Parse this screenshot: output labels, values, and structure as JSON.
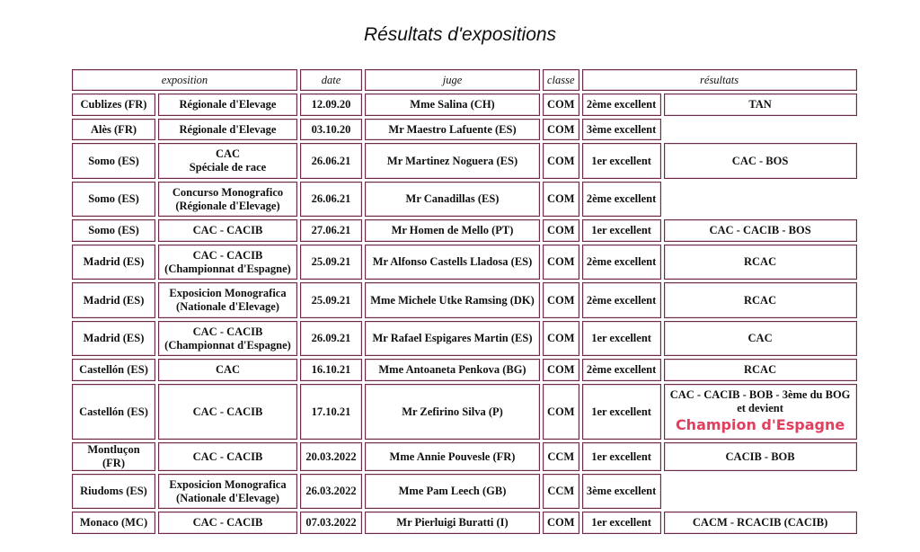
{
  "title": "Résultats d'expositions",
  "headers": {
    "exposition": "exposition",
    "date": "date",
    "juge": "juge",
    "classe": "classe",
    "resultats": "résultats"
  },
  "rows": [
    {
      "lieu": "Cublizes (FR)",
      "type": [
        "Régionale d'Elevage"
      ],
      "date": "12.09.20",
      "juge": "Mme Salina (CH)",
      "classe": "COM",
      "qualif": "2ème excellent",
      "resultat": [
        "TAN"
      ]
    },
    {
      "lieu": "Alès (FR)",
      "type": [
        "Régionale d'Elevage"
      ],
      "date": "03.10.20",
      "juge": "Mr Maestro Lafuente (ES)",
      "classe": "COM",
      "qualif": "3ème excellent",
      "resultat": []
    },
    {
      "lieu": "Somo (ES)",
      "type": [
        "CAC",
        "Spéciale de race"
      ],
      "date": "26.06.21",
      "juge": "Mr Martinez Noguera (ES)",
      "classe": "COM",
      "qualif": "1er excellent",
      "resultat": [
        "CAC - BOS"
      ]
    },
    {
      "lieu": "Somo (ES)",
      "type": [
        "Concurso Monografico",
        "(Régionale d'Elevage)"
      ],
      "date": "26.06.21",
      "juge": "Mr Canadillas (ES)",
      "classe": "COM",
      "qualif": "2ème excellent",
      "resultat": []
    },
    {
      "lieu": "Somo (ES)",
      "type": [
        "CAC - CACIB"
      ],
      "date": "27.06.21",
      "juge": "Mr Homen de Mello (PT)",
      "classe": "COM",
      "qualif": "1er excellent",
      "resultat": [
        "CAC - CACIB - BOS"
      ]
    },
    {
      "lieu": "Madrid (ES)",
      "type": [
        "CAC - CACIB",
        "(Championnat d'Espagne)"
      ],
      "date": "25.09.21",
      "juge": "Mr Alfonso Castells Lladosa (ES)",
      "classe": "COM",
      "qualif": "2ème excellent",
      "resultat": [
        "RCAC"
      ]
    },
    {
      "lieu": "Madrid (ES)",
      "type": [
        "Exposicion Monografica",
        "(Nationale d'Elevage)"
      ],
      "date": "25.09.21",
      "juge": "Mme Michele Utke Ramsing (DK)",
      "classe": "COM",
      "qualif": "2ème excellent",
      "resultat": [
        "RCAC"
      ]
    },
    {
      "lieu": "Madrid (ES)",
      "type": [
        "CAC - CACIB",
        "(Championnat d'Espagne)"
      ],
      "date": "26.09.21",
      "juge": "Mr Rafael Espigares Martin (ES)",
      "classe": "COM",
      "qualif": "1er excellent",
      "resultat": [
        "CAC"
      ]
    },
    {
      "lieu": "Castellón (ES)",
      "type": [
        "CAC"
      ],
      "date": "16.10.21",
      "juge": "Mme Antoaneta Penkova (BG)",
      "classe": "COM",
      "qualif": "2ème excellent",
      "resultat": [
        "RCAC"
      ]
    },
    {
      "lieu": "Castellón (ES)",
      "type": [
        "CAC - CACIB"
      ],
      "date": "17.10.21",
      "juge": "Mr Zefirino Silva (P)",
      "classe": "COM",
      "qualif": "1er excellent",
      "resultat": [
        "CAC - CACIB - BOB - 3ème du BOG",
        "et devient"
      ],
      "highlight": "Champion d'Espagne"
    },
    {
      "lieu": "Montluçon (FR)",
      "type": [
        "CAC - CACIB"
      ],
      "date": "20.03.2022",
      "juge": "Mme Annie Pouvesle (FR)",
      "classe": "CCM",
      "qualif": "1er excellent",
      "resultat": [
        "CACIB - BOB"
      ]
    },
    {
      "lieu": "Riudoms (ES)",
      "type": [
        "Exposicion Monografica",
        "(Nationale d'Elevage)"
      ],
      "date": "26.03.2022",
      "juge": "Mme Pam Leech (GB)",
      "classe": "CCM",
      "qualif": "3ème excellent",
      "resultat": []
    },
    {
      "lieu": "Monaco (MC)",
      "type": [
        "CAC - CACIB"
      ],
      "date": "07.03.2022",
      "juge": "Mr Pierluigi Buratti (I)",
      "classe": "COM",
      "qualif": "1er excellent",
      "resultat": [
        "CACM - RCACIB (CACIB)"
      ]
    }
  ],
  "colors": {
    "border": "#6a2a4a",
    "highlight": "#e0405f"
  }
}
